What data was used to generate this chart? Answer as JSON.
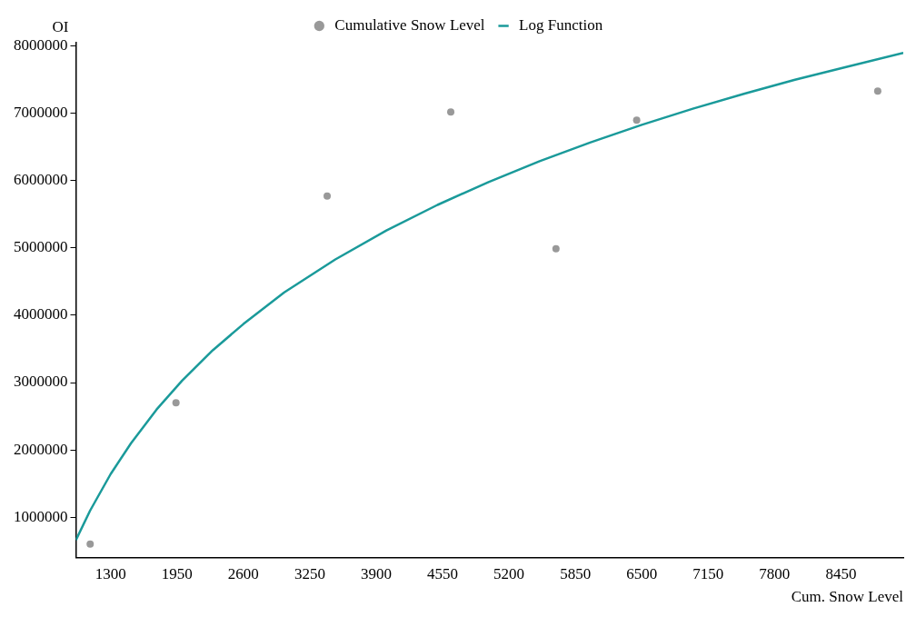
{
  "chart_data": {
    "type": "scatter",
    "xlabel": "Cum. Snow Level",
    "ylabel": "OI",
    "legend": "top",
    "xlim": [
      960,
      9060
    ],
    "xticks": [
      1300,
      1950,
      2600,
      3250,
      3900,
      4550,
      5200,
      5850,
      6500,
      7150,
      7800,
      8450
    ],
    "ylim": [
      400000,
      8050000
    ],
    "yticks": [
      1000000,
      2000000,
      3000000,
      4000000,
      5000000,
      6000000,
      7000000,
      8000000
    ],
    "grid": false,
    "marker": "circle",
    "series": [
      {
        "name": "Cumulative Snow Level",
        "color": "#999999",
        "x": [
          1100,
          1940,
          3420,
          4630,
          5660,
          6450,
          8810
        ],
        "values": [
          600000,
          2700000,
          5770000,
          7020000,
          4990000,
          6900000,
          7330000
        ]
      },
      {
        "name": "Log Function",
        "type": "line",
        "color": "#1a9a9a",
        "marker": "none",
        "x": [
          960,
          1100,
          1300,
          1500,
          1750,
          2000,
          2300,
          2600,
          3000,
          3500,
          4000,
          4500,
          5000,
          5500,
          6000,
          6500,
          7000,
          7500,
          8000,
          8500,
          9060
        ],
        "values": [
          660000,
          1100000,
          1640000,
          2100000,
          2600000,
          3030000,
          3480000,
          3870000,
          4340000,
          4830000,
          5260000,
          5640000,
          5980000,
          6290000,
          6570000,
          6830000,
          7070000,
          7290000,
          7500000,
          7690000,
          7900000
        ]
      }
    ]
  }
}
